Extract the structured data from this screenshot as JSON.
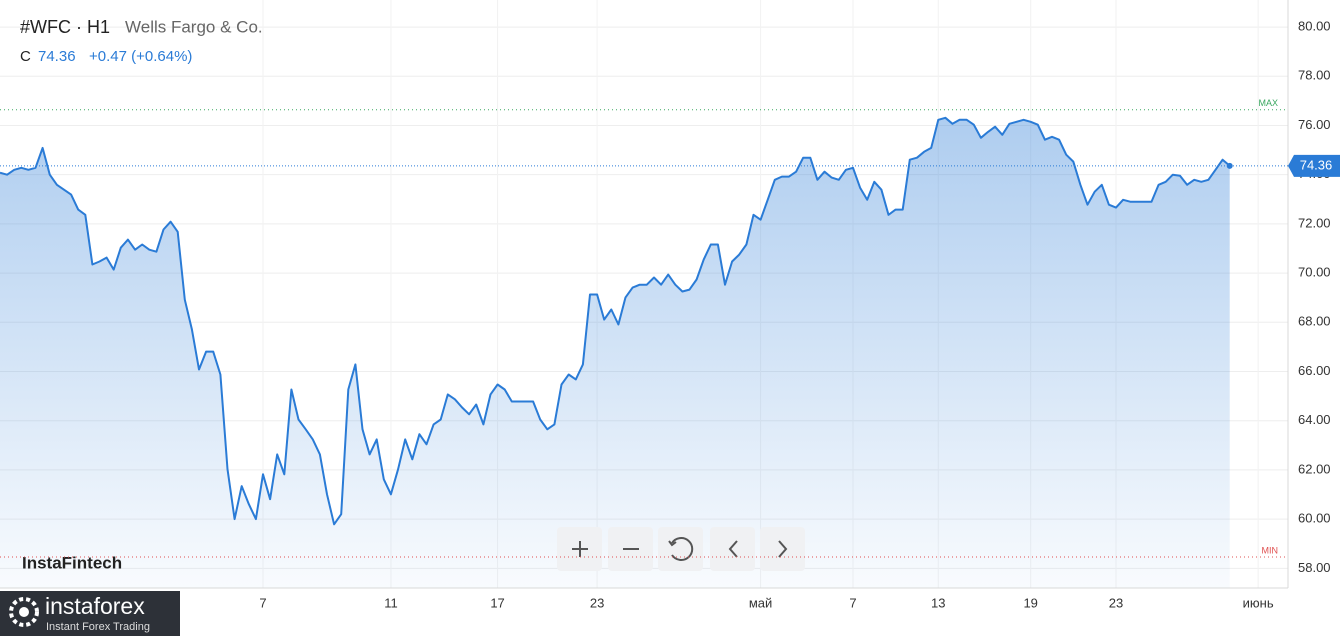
{
  "chart_data": {
    "type": "area",
    "title": "#WFC · H1",
    "subtitle": "Wells Fargo & Co.",
    "price_prefix": "C",
    "last_value": 74.36,
    "change": "+0.47 (+0.64%)",
    "color": "#2a7bd6",
    "values": [
      74.08,
      74.0,
      74.2,
      74.28,
      74.2,
      74.28,
      75.09,
      74.0,
      73.59,
      73.39,
      73.19,
      72.58,
      72.37,
      70.35,
      70.47,
      70.63,
      70.14,
      71.03,
      71.36,
      70.95,
      71.16,
      70.95,
      70.87,
      71.77,
      72.09,
      71.68,
      68.92,
      67.71,
      66.08,
      66.81,
      66.81,
      65.88,
      62.03,
      60.0,
      61.34,
      60.61,
      60.0,
      61.82,
      60.81,
      62.63,
      61.82,
      65.27,
      64.05,
      63.65,
      63.24,
      62.63,
      61.01,
      59.79,
      60.2,
      65.27,
      66.29,
      63.65,
      62.63,
      63.24,
      61.62,
      61.01,
      62.03,
      63.24,
      62.43,
      63.45,
      63.04,
      63.85,
      64.05,
      65.07,
      64.87,
      64.54,
      64.26,
      64.66,
      63.85,
      65.07,
      65.47,
      65.27,
      64.78,
      64.78,
      64.78,
      64.78,
      64.05,
      63.65,
      63.85,
      65.47,
      65.88,
      65.68,
      66.29,
      69.13,
      69.13,
      68.11,
      68.52,
      67.91,
      69.01,
      69.41,
      69.53,
      69.53,
      69.82,
      69.53,
      69.94,
      69.53,
      69.25,
      69.33,
      69.74,
      70.55,
      71.16,
      71.16,
      69.53,
      70.47,
      70.75,
      71.16,
      72.37,
      72.17,
      72.98,
      73.79,
      73.92,
      73.92,
      74.12,
      74.69,
      74.69,
      73.79,
      74.12,
      73.88,
      73.79,
      74.2,
      74.28,
      73.47,
      72.98,
      73.71,
      73.39,
      72.37,
      72.58,
      72.58,
      74.61,
      74.69,
      74.93,
      75.09,
      76.23,
      76.31,
      76.07,
      76.23,
      76.23,
      76.03,
      75.5,
      75.74,
      75.95,
      75.62,
      76.07,
      76.15,
      76.23,
      76.15,
      76.03,
      75.42,
      75.54,
      75.42,
      74.81,
      74.53,
      73.59,
      72.78,
      73.31,
      73.59,
      72.78,
      72.66,
      72.98,
      72.9,
      72.9,
      72.9,
      72.9,
      73.59,
      73.71,
      74.0,
      73.96,
      73.59,
      73.79,
      73.71,
      73.79,
      74.2,
      74.61,
      74.36
    ],
    "max": 76.64,
    "max_label": "MAX",
    "min": 58.46,
    "min_label": "MIN",
    "xlim": [
      0,
      181.2
    ],
    "xticks": [
      {
        "value": 37,
        "label": "7"
      },
      {
        "value": 55,
        "label": "11"
      },
      {
        "value": 70,
        "label": "17"
      },
      {
        "value": 84,
        "label": "23"
      },
      {
        "value": 107,
        "label": "май"
      },
      {
        "value": 120,
        "label": "7"
      },
      {
        "value": 132,
        "label": "13"
      },
      {
        "value": 145,
        "label": "19"
      },
      {
        "value": 157,
        "label": "23"
      },
      {
        "value": 177,
        "label": "июнь"
      }
    ],
    "ylim": [
      57.2,
      81.1
    ],
    "yticks": [
      {
        "value": 58,
        "label": "58.00"
      },
      {
        "value": 60,
        "label": "60.00"
      },
      {
        "value": 62,
        "label": "62.00"
      },
      {
        "value": 64,
        "label": "64.00"
      },
      {
        "value": 66,
        "label": "66.00"
      },
      {
        "value": 68,
        "label": "68.00"
      },
      {
        "value": 70,
        "label": "70.00"
      },
      {
        "value": 72,
        "label": "72.00"
      },
      {
        "value": 74,
        "label": "74.00"
      },
      {
        "value": 76,
        "label": "76.00"
      },
      {
        "value": 78,
        "label": "78.00"
      },
      {
        "value": 80,
        "label": "80.00"
      }
    ],
    "grid": true
  },
  "ui": {
    "watermark": "InstaFintech",
    "logo_name": "instaforex",
    "logo_tagline": "Instant Forex Trading"
  }
}
